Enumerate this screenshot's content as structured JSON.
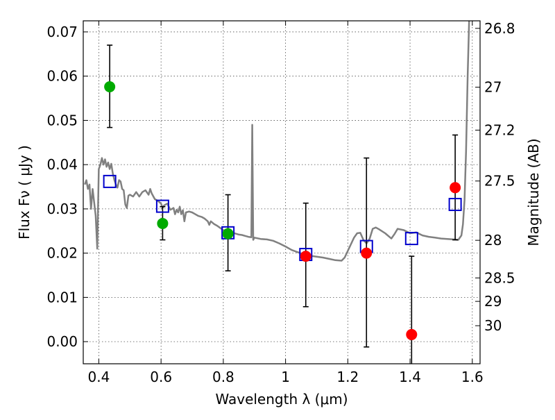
{
  "chart_data": {
    "type": "scatter",
    "xlabel": "Wavelength  λ (μm)",
    "ylabel": "Flux  Fν  ( μJy )",
    "y2label": "Magnitude (AB)",
    "xlim": [
      0.35,
      1.625
    ],
    "ylim": [
      -0.005,
      0.0725
    ],
    "x_ticks": [
      0.4,
      0.6,
      0.8,
      1.0,
      1.2,
      1.4,
      1.6
    ],
    "x_tick_labels": [
      "0.4",
      "0.6",
      "0.8",
      "1",
      "1.2",
      "1.4",
      "1.6"
    ],
    "y_ticks": [
      0.0,
      0.01,
      0.02,
      0.03,
      0.04,
      0.05,
      0.06,
      0.07
    ],
    "y_tick_labels": [
      "0.00",
      "0.01",
      "0.02",
      "0.03",
      "0.04",
      "0.05",
      "0.06",
      "0.07"
    ],
    "y2_ticks": [
      {
        "label": "26.8",
        "flux": 0.0708
      },
      {
        "label": "27",
        "flux": 0.0575
      },
      {
        "label": "27.2",
        "flux": 0.0478
      },
      {
        "label": "27.5",
        "flux": 0.0363
      },
      {
        "label": "28",
        "flux": 0.0229
      },
      {
        "label": "28.5",
        "flux": 0.0144
      },
      {
        "label": "29",
        "flux": 0.0091
      },
      {
        "label": "30",
        "flux": 0.0036
      }
    ],
    "grid": true,
    "series": [
      {
        "kind": "line",
        "color": "#808080",
        "points": [
          [
            0.355,
            0.0355
          ],
          [
            0.36,
            0.0365
          ],
          [
            0.365,
            0.0345
          ],
          [
            0.37,
            0.0355
          ],
          [
            0.375,
            0.03
          ],
          [
            0.38,
            0.0345
          ],
          [
            0.385,
            0.0315
          ],
          [
            0.39,
            0.0285
          ],
          [
            0.395,
            0.021
          ],
          [
            0.4,
            0.039
          ],
          [
            0.405,
            0.04
          ],
          [
            0.41,
            0.0415
          ],
          [
            0.415,
            0.04
          ],
          [
            0.42,
            0.0412
          ],
          [
            0.425,
            0.0395
          ],
          [
            0.43,
            0.0405
          ],
          [
            0.435,
            0.039
          ],
          [
            0.44,
            0.0402
          ],
          [
            0.445,
            0.038
          ],
          [
            0.45,
            0.0365
          ],
          [
            0.455,
            0.0355
          ],
          [
            0.46,
            0.0348
          ],
          [
            0.465,
            0.0365
          ],
          [
            0.47,
            0.0362
          ],
          [
            0.475,
            0.0345
          ],
          [
            0.48,
            0.0342
          ],
          [
            0.485,
            0.031
          ],
          [
            0.49,
            0.0302
          ],
          [
            0.495,
            0.033
          ],
          [
            0.5,
            0.0332
          ],
          [
            0.51,
            0.0328
          ],
          [
            0.52,
            0.0338
          ],
          [
            0.53,
            0.0328
          ],
          [
            0.54,
            0.0338
          ],
          [
            0.55,
            0.0342
          ],
          [
            0.56,
            0.0332
          ],
          [
            0.565,
            0.0345
          ],
          [
            0.57,
            0.0335
          ],
          [
            0.58,
            0.0322
          ],
          [
            0.59,
            0.0318
          ],
          [
            0.6,
            0.0312
          ],
          [
            0.605,
            0.0302
          ],
          [
            0.61,
            0.0308
          ],
          [
            0.62,
            0.0312
          ],
          [
            0.63,
            0.0298
          ],
          [
            0.64,
            0.0302
          ],
          [
            0.645,
            0.0288
          ],
          [
            0.65,
            0.0298
          ],
          [
            0.655,
            0.0292
          ],
          [
            0.66,
            0.0305
          ],
          [
            0.665,
            0.0288
          ],
          [
            0.67,
            0.0297
          ],
          [
            0.675,
            0.0272
          ],
          [
            0.68,
            0.0292
          ],
          [
            0.69,
            0.0294
          ],
          [
            0.7,
            0.0292
          ],
          [
            0.71,
            0.0288
          ],
          [
            0.72,
            0.0284
          ],
          [
            0.73,
            0.0282
          ],
          [
            0.74,
            0.0278
          ],
          [
            0.75,
            0.0272
          ],
          [
            0.755,
            0.0264
          ],
          [
            0.76,
            0.0272
          ],
          [
            0.77,
            0.0266
          ],
          [
            0.78,
            0.0262
          ],
          [
            0.79,
            0.0257
          ],
          [
            0.8,
            0.0252
          ],
          [
            0.81,
            0.0249
          ],
          [
            0.82,
            0.0247
          ],
          [
            0.83,
            0.0246
          ],
          [
            0.84,
            0.0244
          ],
          [
            0.85,
            0.0242
          ],
          [
            0.86,
            0.0241
          ],
          [
            0.87,
            0.0239
          ],
          [
            0.88,
            0.0237
          ],
          [
            0.89,
            0.0236
          ],
          [
            0.893,
            0.049
          ],
          [
            0.896,
            0.023
          ],
          [
            0.9,
            0.0235
          ],
          [
            0.92,
            0.0232
          ],
          [
            0.94,
            0.0231
          ],
          [
            0.96,
            0.0228
          ],
          [
            0.98,
            0.0222
          ],
          [
            1.0,
            0.0215
          ],
          [
            1.02,
            0.0207
          ],
          [
            1.04,
            0.0202
          ],
          [
            1.06,
            0.0197
          ],
          [
            1.08,
            0.0194
          ],
          [
            1.1,
            0.0192
          ],
          [
            1.12,
            0.019
          ],
          [
            1.14,
            0.0187
          ],
          [
            1.16,
            0.0184
          ],
          [
            1.18,
            0.0183
          ],
          [
            1.19,
            0.019
          ],
          [
            1.2,
            0.0205
          ],
          [
            1.22,
            0.0235
          ],
          [
            1.23,
            0.0245
          ],
          [
            1.24,
            0.0246
          ],
          [
            1.25,
            0.023
          ],
          [
            1.26,
            0.0222
          ],
          [
            1.27,
            0.0232
          ],
          [
            1.28,
            0.0255
          ],
          [
            1.29,
            0.0258
          ],
          [
            1.3,
            0.0254
          ],
          [
            1.32,
            0.0245
          ],
          [
            1.34,
            0.0233
          ],
          [
            1.35,
            0.0243
          ],
          [
            1.36,
            0.0255
          ],
          [
            1.38,
            0.0252
          ],
          [
            1.4,
            0.0245
          ],
          [
            1.42,
            0.0247
          ],
          [
            1.44,
            0.024
          ],
          [
            1.46,
            0.0237
          ],
          [
            1.48,
            0.0235
          ],
          [
            1.5,
            0.0233
          ],
          [
            1.52,
            0.0232
          ],
          [
            1.54,
            0.0231
          ],
          [
            1.555,
            0.023
          ],
          [
            1.565,
            0.024
          ],
          [
            1.57,
            0.0265
          ],
          [
            1.575,
            0.032
          ],
          [
            1.58,
            0.043
          ],
          [
            1.585,
            0.06
          ],
          [
            1.59,
            0.073
          ]
        ]
      },
      {
        "kind": "points",
        "marker": "circle",
        "color": "#00aa00",
        "points": [
          {
            "x": 0.435,
            "y": 0.0576,
            "yerr_low": 0.0484,
            "yerr_high": 0.067
          },
          {
            "x": 0.605,
            "y": 0.0267,
            "yerr_low": 0.023,
            "yerr_high": 0.0305
          },
          {
            "x": 0.815,
            "y": 0.0244,
            "yerr_low": 0.016,
            "yerr_high": 0.0332
          }
        ]
      },
      {
        "kind": "points",
        "marker": "circle",
        "color": "#ff0000",
        "points": [
          {
            "x": 1.065,
            "y": 0.0193,
            "yerr_low": 0.0079,
            "yerr_high": 0.0313
          },
          {
            "x": 1.26,
            "y": 0.02,
            "yerr_low": -0.0012,
            "yerr_high": 0.0415
          },
          {
            "x": 1.405,
            "y": 0.0016,
            "yerr_low": -0.006,
            "yerr_high": 0.0193
          },
          {
            "x": 1.545,
            "y": 0.0348,
            "yerr_low": 0.023,
            "yerr_high": 0.0467
          }
        ]
      },
      {
        "kind": "points",
        "marker": "open-square",
        "color": "#0000cc",
        "points": [
          {
            "x": 0.435,
            "y": 0.0362
          },
          {
            "x": 0.605,
            "y": 0.0306
          },
          {
            "x": 0.815,
            "y": 0.0246
          },
          {
            "x": 1.065,
            "y": 0.0197
          },
          {
            "x": 1.26,
            "y": 0.0215
          },
          {
            "x": 1.405,
            "y": 0.0233
          },
          {
            "x": 1.545,
            "y": 0.031
          }
        ]
      }
    ]
  }
}
